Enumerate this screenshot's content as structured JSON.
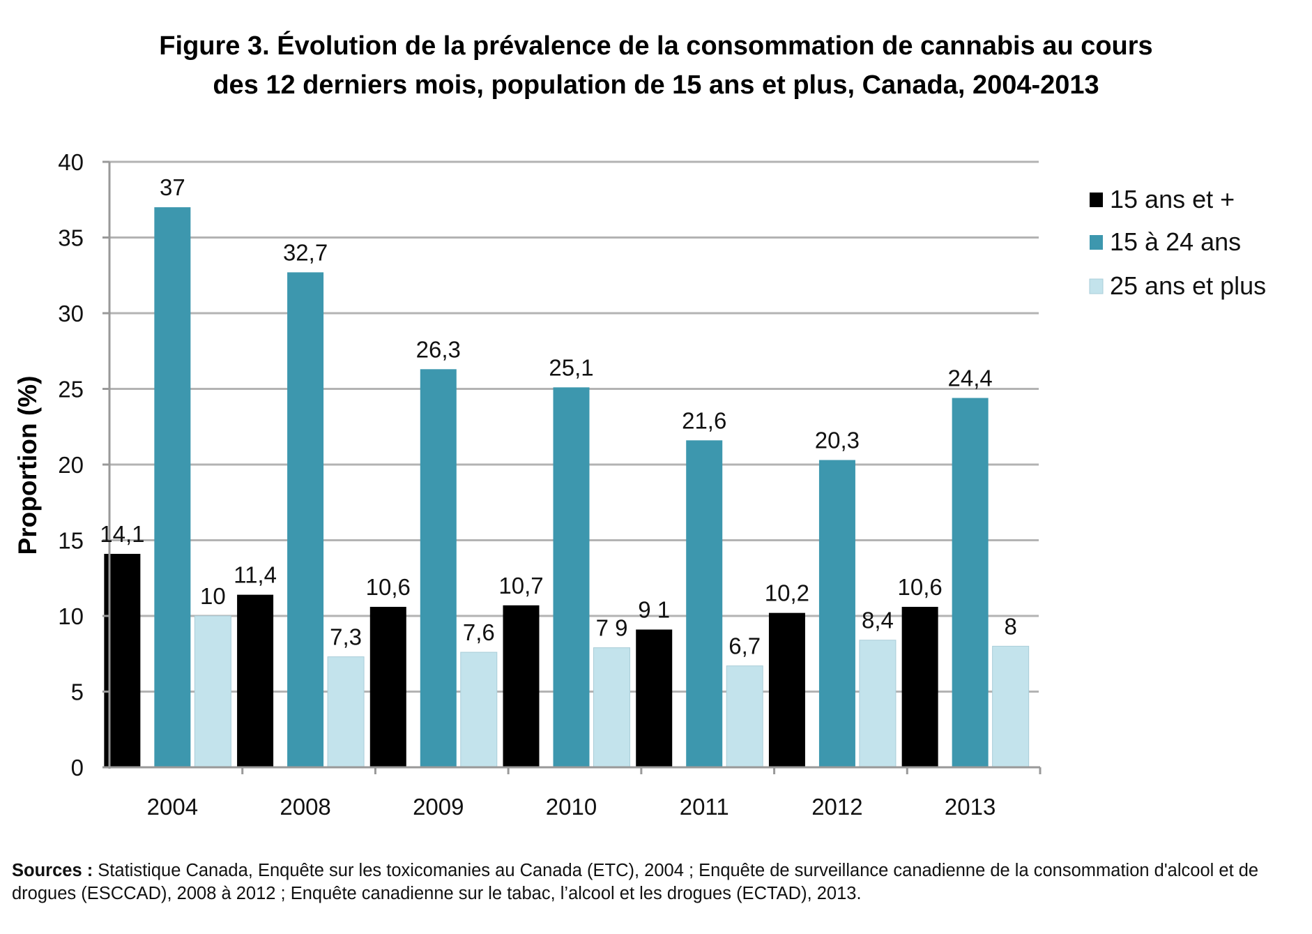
{
  "title": {
    "line1": "Figure 3. Évolution de la prévalence de la consommation de cannabis au cours",
    "line2": "des 12 derniers mois, population de 15 ans et plus, Canada, 2004-2013"
  },
  "sources": {
    "label": "Sources :",
    "text": " Statistique Canada, Enquête sur les toxicomanies au Canada (ETC), 2004 ; Enquête de surveillance canadienne de la consommation d'alcool et de drogues (ESCCAD), 2008 à 2012 ; Enquête canadienne sur le tabac, l’alcool et les drogues (ECTAD), 2013."
  },
  "chart_data": {
    "type": "bar",
    "title": "Figure 3. Évolution de la prévalence de la consommation de cannabis au cours des 12 derniers mois, population de 15 ans et plus, Canada, 2004-2013",
    "xlabel": "",
    "ylabel": "Proportion (%)",
    "ylim": [
      0,
      40
    ],
    "yticks": [
      0,
      5,
      10,
      15,
      20,
      25,
      30,
      35,
      40
    ],
    "grid": true,
    "legend_position": "top-right",
    "categories": [
      "2004",
      "2008",
      "2009",
      "2010",
      "2011",
      "2012",
      "2013"
    ],
    "series": [
      {
        "name": "15 ans et +",
        "color": "#000000",
        "values": [
          14.1,
          11.4,
          10.6,
          10.7,
          9.1,
          10.2,
          10.6
        ],
        "labels": [
          "14,1",
          "11,4",
          "10,6",
          "10,7",
          "9 1",
          "10,2",
          "10,6"
        ]
      },
      {
        "name": "15 à 24 ans",
        "color": "#3d97ae",
        "values": [
          37,
          32.7,
          26.3,
          25.1,
          21.6,
          20.3,
          24.4
        ],
        "labels": [
          "37",
          "32,7",
          "26,3",
          "25,1",
          "21,6",
          "20,3",
          "24,4"
        ]
      },
      {
        "name": "25 ans et plus",
        "color": "#c3e3ec",
        "values": [
          10,
          7.3,
          7.6,
          7.9,
          6.7,
          8.4,
          8
        ],
        "labels": [
          "10",
          "7,3",
          "7,6",
          "7 9",
          "6,7",
          "8,4",
          "8"
        ]
      }
    ]
  }
}
